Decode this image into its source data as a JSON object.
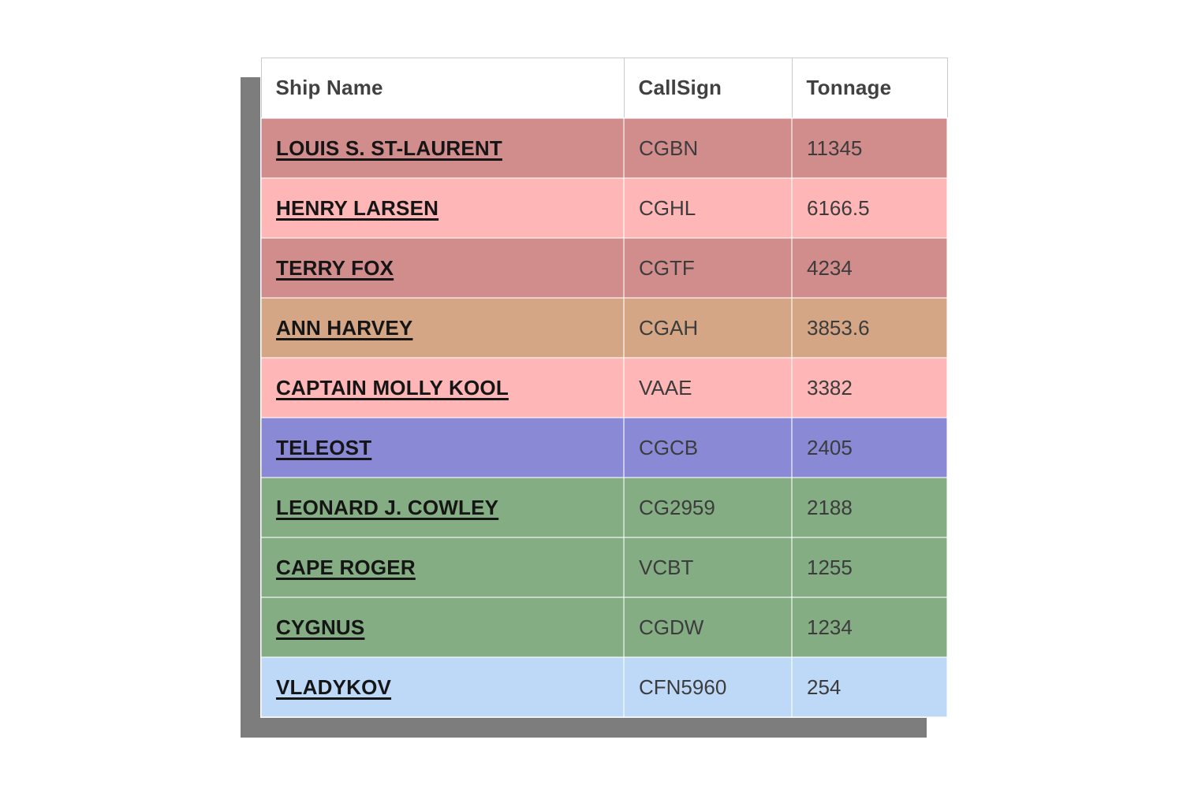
{
  "table": {
    "columns": [
      {
        "key": "ship_name",
        "label": "Ship Name"
      },
      {
        "key": "call_sign",
        "label": "CallSign"
      },
      {
        "key": "tonnage",
        "label": "Tonnage"
      }
    ],
    "rows": [
      {
        "ship_name": "LOUIS S. ST-LAURENT",
        "call_sign": "CGBN",
        "tonnage": "11345",
        "row_color": "#d18c8c"
      },
      {
        "ship_name": "HENRY LARSEN",
        "call_sign": "CGHL",
        "tonnage": "6166.5",
        "row_color": "#ffb6b6"
      },
      {
        "ship_name": "TERRY FOX",
        "call_sign": "CGTF",
        "tonnage": "4234",
        "row_color": "#d18c8c"
      },
      {
        "ship_name": "ANN HARVEY",
        "call_sign": "CGAH",
        "tonnage": "3853.6",
        "row_color": "#d4a685"
      },
      {
        "ship_name": "CAPTAIN MOLLY KOOL",
        "call_sign": "VAAE",
        "tonnage": "3382",
        "row_color": "#ffb6b6"
      },
      {
        "ship_name": "TELEOST",
        "call_sign": "CGCB",
        "tonnage": "2405",
        "row_color": "#8989d6"
      },
      {
        "ship_name": "LEONARD J. COWLEY",
        "call_sign": "CG2959",
        "tonnage": "2188",
        "row_color": "#84ad84"
      },
      {
        "ship_name": "CAPE ROGER",
        "call_sign": "VCBT",
        "tonnage": "1255",
        "row_color": "#84ad84"
      },
      {
        "ship_name": "CYGNUS",
        "call_sign": "CGDW",
        "tonnage": "1234",
        "row_color": "#84ad84"
      },
      {
        "ship_name": "VLADYKOV",
        "call_sign": "CFN5960",
        "tonnage": "254",
        "row_color": "#bed9f8"
      }
    ]
  },
  "ui_colors": {
    "shadow": "#7d7d7d",
    "header_background": "#ffffff",
    "header_border": "#cbcbcb",
    "header_text": "#414141",
    "cell_text": "#3c3c3c",
    "ship_link_text": "#151515",
    "page_background": "#ffffff"
  }
}
